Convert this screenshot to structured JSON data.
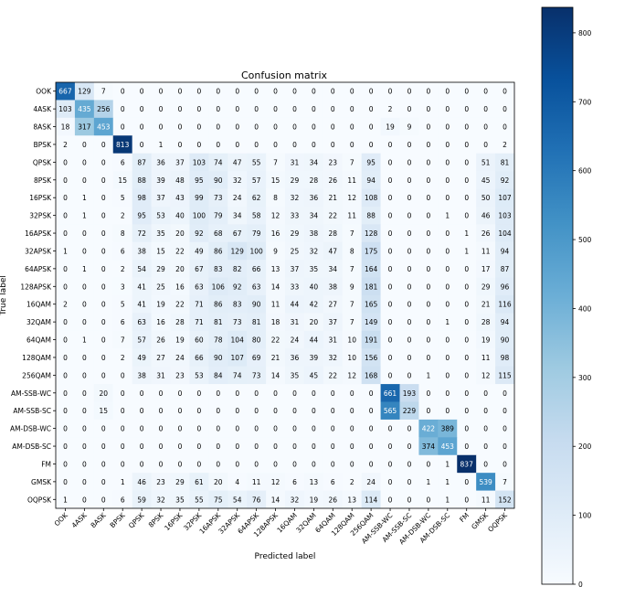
{
  "chart_data": {
    "type": "heatmap",
    "title": "Confusion matrix",
    "xlabel": "Predicted label",
    "ylabel": "True label",
    "colormap": "Blues",
    "vmin": 0,
    "vmax": 837,
    "colorbar_ticks": [
      0,
      100,
      200,
      300,
      400,
      500,
      600,
      700,
      800
    ],
    "labels": [
      "OOK",
      "4ASK",
      "8ASK",
      "BPSK",
      "QPSK",
      "8PSK",
      "16PSK",
      "32PSK",
      "16APSK",
      "32APSK",
      "64APSK",
      "128APSK",
      "16QAM",
      "32QAM",
      "64QAM",
      "128QAM",
      "256QAM",
      "AM-SSB-WC",
      "AM-SSB-SC",
      "AM-DSB-WC",
      "AM-DSB-SC",
      "FM",
      "GMSK",
      "OQPSK"
    ],
    "matrix": [
      [
        667,
        129,
        7,
        0,
        0,
        0,
        0,
        0,
        0,
        0,
        0,
        0,
        0,
        0,
        0,
        0,
        0,
        0,
        0,
        0,
        0,
        0,
        0,
        0
      ],
      [
        103,
        435,
        256,
        0,
        0,
        0,
        0,
        0,
        0,
        0,
        0,
        0,
        0,
        0,
        0,
        0,
        0,
        2,
        0,
        0,
        0,
        0,
        0,
        0
      ],
      [
        18,
        317,
        453,
        0,
        0,
        0,
        0,
        0,
        0,
        0,
        0,
        0,
        0,
        0,
        0,
        0,
        0,
        19,
        9,
        0,
        0,
        0,
        0,
        0
      ],
      [
        2,
        0,
        0,
        813,
        0,
        1,
        0,
        0,
        0,
        0,
        0,
        0,
        0,
        0,
        0,
        0,
        0,
        0,
        0,
        0,
        0,
        0,
        0,
        2
      ],
      [
        0,
        0,
        0,
        6,
        87,
        36,
        37,
        103,
        74,
        47,
        55,
        7,
        31,
        34,
        23,
        7,
        95,
        0,
        0,
        0,
        0,
        0,
        51,
        81
      ],
      [
        0,
        0,
        0,
        15,
        88,
        39,
        48,
        95,
        90,
        32,
        57,
        15,
        29,
        28,
        26,
        11,
        94,
        0,
        0,
        0,
        0,
        0,
        45,
        92
      ],
      [
        0,
        1,
        0,
        5,
        98,
        37,
        43,
        99,
        73,
        24,
        62,
        8,
        32,
        36,
        21,
        12,
        108,
        0,
        0,
        0,
        0,
        0,
        50,
        107
      ],
      [
        0,
        1,
        0,
        2,
        95,
        53,
        40,
        100,
        79,
        34,
        58,
        12,
        33,
        34,
        22,
        11,
        88,
        0,
        0,
        0,
        1,
        0,
        46,
        103
      ],
      [
        0,
        0,
        0,
        8,
        72,
        35,
        20,
        92,
        68,
        67,
        79,
        16,
        29,
        38,
        28,
        7,
        128,
        0,
        0,
        0,
        0,
        1,
        26,
        104
      ],
      [
        1,
        0,
        0,
        6,
        38,
        15,
        22,
        49,
        86,
        129,
        100,
        9,
        25,
        32,
        47,
        8,
        175,
        0,
        0,
        0,
        0,
        1,
        11,
        94
      ],
      [
        0,
        1,
        0,
        2,
        54,
        29,
        20,
        67,
        83,
        82,
        66,
        13,
        37,
        35,
        34,
        7,
        164,
        0,
        0,
        0,
        0,
        0,
        17,
        87
      ],
      [
        0,
        0,
        0,
        3,
        41,
        25,
        16,
        63,
        106,
        92,
        63,
        14,
        33,
        40,
        38,
        9,
        181,
        0,
        0,
        0,
        0,
        0,
        29,
        96
      ],
      [
        2,
        0,
        0,
        5,
        41,
        19,
        22,
        71,
        86,
        83,
        90,
        11,
        44,
        42,
        27,
        7,
        165,
        0,
        0,
        0,
        0,
        0,
        21,
        116
      ],
      [
        0,
        0,
        0,
        6,
        63,
        16,
        28,
        71,
        81,
        73,
        81,
        18,
        31,
        20,
        37,
        7,
        149,
        0,
        0,
        0,
        1,
        0,
        28,
        94
      ],
      [
        0,
        1,
        0,
        7,
        57,
        26,
        19,
        60,
        78,
        104,
        80,
        22,
        24,
        44,
        31,
        10,
        191,
        0,
        0,
        0,
        0,
        0,
        19,
        90
      ],
      [
        0,
        0,
        0,
        2,
        49,
        27,
        24,
        66,
        90,
        107,
        69,
        21,
        36,
        39,
        32,
        10,
        156,
        0,
        0,
        0,
        0,
        0,
        11,
        98
      ],
      [
        0,
        0,
        0,
        0,
        38,
        31,
        23,
        53,
        84,
        74,
        73,
        14,
        35,
        45,
        22,
        12,
        168,
        0,
        0,
        1,
        0,
        0,
        12,
        115
      ],
      [
        0,
        0,
        20,
        0,
        0,
        0,
        0,
        0,
        0,
        0,
        0,
        0,
        0,
        0,
        0,
        0,
        0,
        661,
        193,
        0,
        0,
        0,
        0,
        0
      ],
      [
        0,
        0,
        15,
        0,
        0,
        0,
        0,
        0,
        0,
        0,
        0,
        0,
        0,
        0,
        0,
        0,
        0,
        565,
        229,
        0,
        0,
        0,
        0,
        0
      ],
      [
        0,
        0,
        0,
        0,
        0,
        0,
        0,
        0,
        0,
        0,
        0,
        0,
        0,
        0,
        0,
        0,
        0,
        0,
        0,
        422,
        389,
        0,
        0,
        0
      ],
      [
        0,
        0,
        0,
        0,
        0,
        0,
        0,
        0,
        0,
        0,
        0,
        0,
        0,
        0,
        0,
        0,
        0,
        0,
        0,
        374,
        453,
        0,
        0,
        0
      ],
      [
        0,
        0,
        0,
        0,
        0,
        0,
        0,
        0,
        0,
        0,
        0,
        0,
        0,
        0,
        0,
        0,
        0,
        0,
        0,
        0,
        1,
        837,
        0,
        0
      ],
      [
        0,
        0,
        0,
        1,
        46,
        23,
        29,
        61,
        20,
        4,
        11,
        12,
        6,
        13,
        6,
        2,
        24,
        0,
        0,
        1,
        1,
        0,
        539,
        7
      ],
      [
        1,
        0,
        0,
        6,
        59,
        32,
        35,
        55,
        75,
        54,
        76,
        14,
        32,
        19,
        26,
        13,
        114,
        0,
        0,
        0,
        1,
        0,
        11,
        152
      ]
    ]
  }
}
